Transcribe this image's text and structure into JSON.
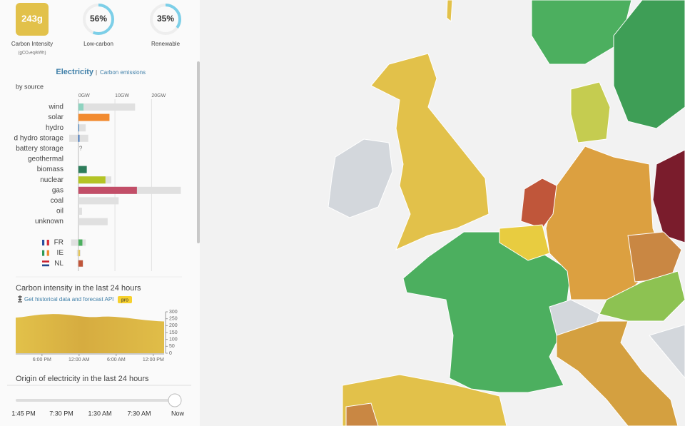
{
  "panel": {
    "carbon_intensity": "243g",
    "carbon_intensity_label": "Carbon Intensity",
    "carbon_intensity_unit": "(gCO₂eq/kWh)",
    "low_carbon": {
      "value": 56,
      "label": "56%"
    },
    "low_carbon_label": "Low-carbon",
    "renewable": {
      "value": 35,
      "label": "35%"
    },
    "renewable_label": "Renewable"
  },
  "breakdown": {
    "tab": "Electricity",
    "separator": "|",
    "other_tab": "Carbon emissions",
    "subtitle": "by source",
    "xlim": [
      -2.5,
      28.5
    ],
    "xticks": [
      {
        "value": 0,
        "label": "0GW"
      },
      {
        "value": 10,
        "label": "10GW"
      },
      {
        "value": 20,
        "label": "20GW"
      }
    ],
    "sources": [
      {
        "name": "wind",
        "production": 1.4,
        "capacity": 15.5,
        "color": "#8fd3c0"
      },
      {
        "name": "solar",
        "production": 8.5,
        "capacity": 8.5,
        "color": "#f28b30"
      },
      {
        "name": "hydro",
        "production": 0.2,
        "capacity": 2,
        "color": "#3a7fc1"
      },
      {
        "name": "d hydro storage",
        "production": 0.3,
        "capacity": 2.7,
        "capacity_min": -2.5,
        "color": "#1f5fb4"
      },
      {
        "name": "battery storage",
        "note": "?"
      },
      {
        "name": "geothermal"
      },
      {
        "name": "biomass",
        "production": 2.3,
        "capacity": 2.3,
        "color": "#2e7d5b"
      },
      {
        "name": "nuclear",
        "production": 7.4,
        "capacity": 9,
        "color": "#b4c425"
      },
      {
        "name": "gas",
        "production": 16,
        "capacity": 28,
        "color": "#c24e68"
      },
      {
        "name": "coal",
        "production": 0,
        "capacity": 11,
        "color": "#555555"
      },
      {
        "name": "oil",
        "production": 0,
        "capacity": 1,
        "color": "#777777"
      },
      {
        "name": "unknown",
        "production": 0,
        "capacity": 8,
        "color": "#999999"
      }
    ],
    "exchanges": [
      {
        "name": "FR",
        "value": 1.1,
        "capacity_min": -2,
        "capacity": 2,
        "color": "#4caf5f"
      },
      {
        "name": "IE",
        "value": 0.4,
        "capacity_min": -0.4,
        "capacity": 0.6,
        "color": "#e2c14a"
      },
      {
        "name": "NL",
        "value": 1.2,
        "capacity_min": -0.2,
        "capacity": 1.4,
        "color": "#c0563a"
      }
    ]
  },
  "history": {
    "title": "Carbon intensity in the last 24 hours",
    "api_link": "Get historical data and forecast API",
    "badge": "pro",
    "xlim": [
      0,
      24
    ],
    "ylim": [
      0,
      300
    ],
    "yticks": [
      0,
      50,
      100,
      150,
      200,
      250,
      300
    ],
    "xticks": [
      {
        "value": 4.25,
        "label": "6:00 PM"
      },
      {
        "value": 10.25,
        "label": "12:00 AM"
      },
      {
        "value": 16.25,
        "label": "6:00 AM"
      },
      {
        "value": 22.25,
        "label": "12:00 PM"
      }
    ],
    "x": [
      0,
      1,
      2,
      3,
      4,
      5,
      6,
      7,
      8,
      9,
      10,
      11,
      12,
      13,
      14,
      15,
      16,
      17,
      18,
      19,
      20,
      21,
      22,
      23,
      24
    ],
    "values": [
      258,
      262,
      268,
      275,
      280,
      282,
      284,
      283,
      280,
      276,
      270,
      265,
      262,
      262,
      265,
      266,
      264,
      260,
      256,
      250,
      245,
      240,
      236,
      232,
      230
    ],
    "color": "#d8b445"
  },
  "origin": {
    "title": "Origin of electricity in the last 24 hours",
    "slider_labels": [
      "1:45 PM",
      "7:30 PM",
      "1:30 AM",
      "7:30 AM",
      "Now"
    ]
  }
}
